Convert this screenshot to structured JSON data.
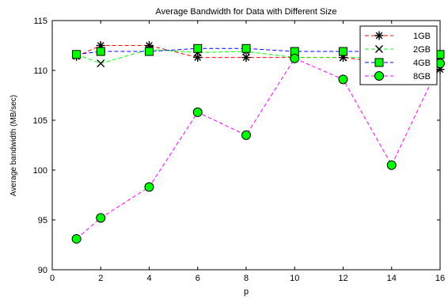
{
  "chart_data": {
    "type": "line",
    "title": "Average Bandwidth for Data with Different Size",
    "xlabel": "p",
    "ylabel": "Average bandwidth (MB/sec)",
    "xlim": [
      0,
      16
    ],
    "ylim": [
      90,
      115
    ],
    "xticks": [
      0,
      2,
      4,
      6,
      8,
      10,
      12,
      14,
      16
    ],
    "yticks": [
      90,
      95,
      100,
      105,
      110,
      115
    ],
    "grid": false,
    "legend_position": "top-right",
    "x": [
      1,
      2,
      4,
      6,
      8,
      10,
      12,
      14,
      16
    ],
    "series": [
      {
        "name": "1GB",
        "color": "#ff0000",
        "marker": "asterisk",
        "values": [
          111.4,
          112.5,
          112.5,
          111.3,
          111.3,
          111.3,
          111.3,
          110.7,
          110.1
        ]
      },
      {
        "name": "2GB",
        "color": "#00ff00",
        "marker": "x",
        "values": [
          111.6,
          110.7,
          112.1,
          111.8,
          111.9,
          111.3,
          111.3,
          111.3,
          111.3
        ]
      },
      {
        "name": "4GB",
        "color": "#0000ff",
        "marker": "square",
        "values": [
          111.6,
          111.9,
          111.9,
          112.2,
          112.2,
          111.9,
          111.9,
          111.9,
          111.6
        ]
      },
      {
        "name": "8GB",
        "color": "#ff00ff",
        "marker": "circle",
        "values": [
          93.1,
          95.2,
          98.3,
          105.8,
          103.5,
          111.2,
          109.1,
          100.5,
          110.7
        ]
      }
    ]
  }
}
